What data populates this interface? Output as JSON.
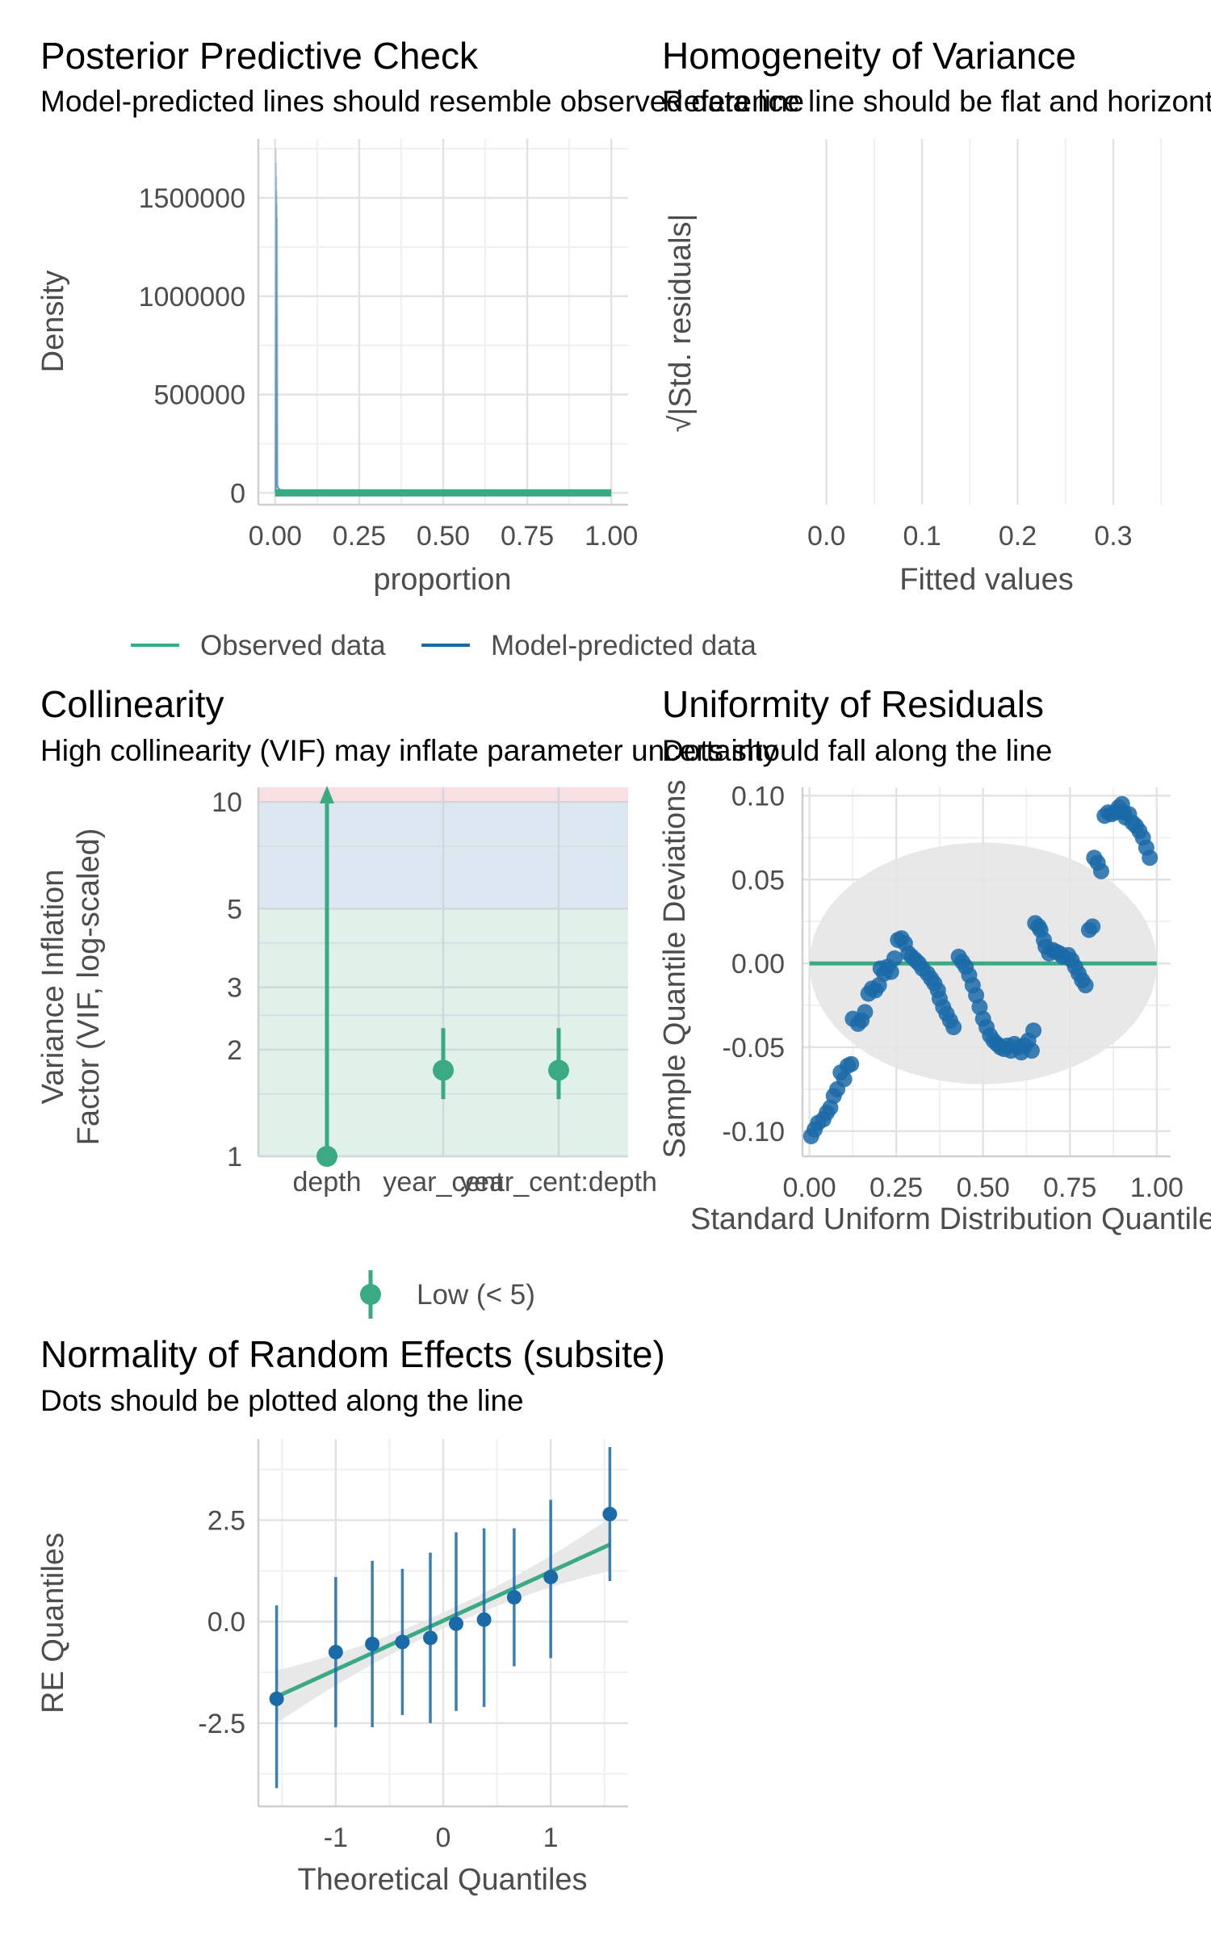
{
  "colors": {
    "observed": "#3aaa84",
    "predicted": "#1b6aa8",
    "grid_major": "#e2e2e2",
    "grid_minor": "#f0f0f0",
    "axis": "#cfcfcf",
    "vif_low": "#e0f1ea",
    "vif_moderate": "#dde7f1",
    "vif_high": "#f8dfe1",
    "band": "#e6e6e6"
  },
  "chart_data": [
    {
      "type": "line",
      "title": "Posterior Predictive Check",
      "subtitle": "Model-predicted lines should resemble observed data line",
      "xlabel": "proportion",
      "ylabel": "Density",
      "xlim": [
        0,
        1
      ],
      "ylim": [
        0,
        1750000
      ],
      "x_ticks": [
        "0.00",
        "0.25",
        "0.50",
        "0.75",
        "1.00"
      ],
      "y_ticks": [
        "0",
        "500000",
        "1000000",
        "1500000"
      ],
      "series": [
        {
          "name": "Observed data",
          "x": [
            0.0,
            0.25,
            0.5,
            0.75,
            1.0
          ],
          "y": [
            0,
            0,
            0,
            0,
            0
          ]
        },
        {
          "name": "Model-predicted data",
          "x": [
            0.0,
            0.002,
            0.004,
            0.01,
            0.03,
            0.08
          ],
          "y": [
            0,
            1750000,
            40000,
            20000,
            8000,
            2000
          ]
        }
      ],
      "legend": {
        "position": "bottom",
        "items": [
          "Observed data",
          "Model-predicted data"
        ]
      }
    },
    {
      "type": "scatter",
      "title": "Homogeneity of Variance",
      "subtitle": "Reference line should be flat and horizontal",
      "xlabel": "Fitted values",
      "ylabel": "√|Std. residuals|",
      "xlim": [
        -0.02,
        0.36
      ],
      "x_ticks": [
        "0.0",
        "0.1",
        "0.2",
        "0.3"
      ],
      "points": []
    },
    {
      "type": "scatter",
      "title": "Collinearity",
      "subtitle": "High collinearity (VIF) may inflate parameter uncertainty",
      "xlabel": "",
      "ylabel": "Variance Inflation Factor (VIF, log-scaled)",
      "ylim": [
        1,
        11
      ],
      "log_y": true,
      "y_ticks": [
        "1",
        "2",
        "3",
        "5",
        "10"
      ],
      "categories": [
        "depth",
        "year_cent",
        "year_cent:depth"
      ],
      "values": [
        1.0,
        1.75,
        1.75
      ],
      "ci_low": [
        1.0,
        1.45,
        1.45
      ],
      "ci_high": [
        11.0,
        2.3,
        2.3
      ],
      "zones": [
        {
          "from": 1,
          "to": 5
        },
        {
          "from": 5,
          "to": 10
        },
        {
          "from": 10,
          "to": 11
        }
      ],
      "legend": {
        "position": "bottom",
        "items": [
          "Low (< 5)"
        ]
      }
    },
    {
      "type": "scatter",
      "title": "Uniformity of Residuals",
      "subtitle": "Dots should fall along the line",
      "xlabel": "Standard Uniform Distribution Quantiles",
      "ylabel": "Sample Quantile Deviations",
      "xlim": [
        -0.02,
        1.04
      ],
      "ylim": [
        -0.115,
        0.105
      ],
      "x_ticks": [
        "0.00",
        "0.25",
        "0.50",
        "0.75",
        "1.00"
      ],
      "y_ticks": [
        "-0.10",
        "-0.05",
        "0.00",
        "0.05",
        "0.10"
      ],
      "points": [
        [
          0.005,
          -0.103
        ],
        [
          0.015,
          -0.099
        ],
        [
          0.025,
          -0.095
        ],
        [
          0.04,
          -0.093
        ],
        [
          0.05,
          -0.089
        ],
        [
          0.06,
          -0.086
        ],
        [
          0.07,
          -0.079
        ],
        [
          0.08,
          -0.075
        ],
        [
          0.09,
          -0.065
        ],
        [
          0.1,
          -0.069
        ],
        [
          0.11,
          -0.061
        ],
        [
          0.12,
          -0.06
        ],
        [
          0.125,
          -0.033
        ],
        [
          0.14,
          -0.036
        ],
        [
          0.15,
          -0.034
        ],
        [
          0.16,
          -0.029
        ],
        [
          0.17,
          -0.018
        ],
        [
          0.18,
          -0.015
        ],
        [
          0.19,
          -0.016
        ],
        [
          0.2,
          -0.013
        ],
        [
          0.205,
          -0.003
        ],
        [
          0.215,
          -0.006
        ],
        [
          0.225,
          -0.002
        ],
        [
          0.235,
          -0.005
        ],
        [
          0.245,
          0.003
        ],
        [
          0.255,
          0.014
        ],
        [
          0.265,
          0.015
        ],
        [
          0.275,
          0.012
        ],
        [
          0.285,
          0.006
        ],
        [
          0.295,
          0.004
        ],
        [
          0.305,
          0.002
        ],
        [
          0.315,
          0.0
        ],
        [
          0.325,
          -0.003
        ],
        [
          0.34,
          -0.006
        ],
        [
          0.35,
          -0.009
        ],
        [
          0.36,
          -0.012
        ],
        [
          0.37,
          -0.016
        ],
        [
          0.375,
          -0.021
        ],
        [
          0.385,
          -0.026
        ],
        [
          0.395,
          -0.03
        ],
        [
          0.405,
          -0.034
        ],
        [
          0.415,
          -0.038
        ],
        [
          0.43,
          0.004
        ],
        [
          0.44,
          0.001
        ],
        [
          0.45,
          -0.002
        ],
        [
          0.46,
          -0.007
        ],
        [
          0.47,
          -0.013
        ],
        [
          0.48,
          -0.019
        ],
        [
          0.49,
          -0.026
        ],
        [
          0.5,
          -0.033
        ],
        [
          0.51,
          -0.038
        ],
        [
          0.52,
          -0.043
        ],
        [
          0.53,
          -0.046
        ],
        [
          0.54,
          -0.048
        ],
        [
          0.55,
          -0.05
        ],
        [
          0.56,
          -0.051
        ],
        [
          0.57,
          -0.049
        ],
        [
          0.58,
          -0.052
        ],
        [
          0.59,
          -0.048
        ],
        [
          0.6,
          -0.05
        ],
        [
          0.61,
          -0.053
        ],
        [
          0.62,
          -0.049
        ],
        [
          0.63,
          -0.046
        ],
        [
          0.64,
          -0.052
        ],
        [
          0.645,
          -0.04
        ],
        [
          0.65,
          0.024
        ],
        [
          0.66,
          0.022
        ],
        [
          0.665,
          0.02
        ],
        [
          0.675,
          0.014
        ],
        [
          0.68,
          0.01
        ],
        [
          0.69,
          0.006
        ],
        [
          0.7,
          0.008
        ],
        [
          0.71,
          0.007
        ],
        [
          0.72,
          0.006
        ],
        [
          0.73,
          0.004
        ],
        [
          0.745,
          0.005
        ],
        [
          0.755,
          0.002
        ],
        [
          0.765,
          -0.002
        ],
        [
          0.775,
          -0.006
        ],
        [
          0.785,
          -0.01
        ],
        [
          0.795,
          -0.013
        ],
        [
          0.805,
          0.02
        ],
        [
          0.815,
          0.022
        ],
        [
          0.82,
          0.063
        ],
        [
          0.83,
          0.06
        ],
        [
          0.84,
          0.055
        ],
        [
          0.85,
          0.088
        ],
        [
          0.86,
          0.09
        ],
        [
          0.87,
          0.089
        ],
        [
          0.88,
          0.09
        ],
        [
          0.89,
          0.093
        ],
        [
          0.9,
          0.095
        ],
        [
          0.905,
          0.09
        ],
        [
          0.91,
          0.087
        ],
        [
          0.92,
          0.089
        ],
        [
          0.93,
          0.084
        ],
        [
          0.94,
          0.082
        ],
        [
          0.95,
          0.079
        ],
        [
          0.96,
          0.075
        ],
        [
          0.97,
          0.069
        ],
        [
          0.98,
          0.063
        ]
      ],
      "reference_line": {
        "x": [
          0,
          1
        ],
        "y": [
          0,
          0
        ]
      },
      "band": {
        "center": [
          0.5,
          0.0
        ],
        "radius_x": 0.5,
        "radius_y": 0.072
      }
    },
    {
      "type": "scatter",
      "title": "Normality of Random Effects (subsite)",
      "subtitle": "Dots should be plotted along the line",
      "xlabel": "Theoretical Quantiles",
      "ylabel": "RE Quantiles",
      "xlim": [
        -1.72,
        1.72
      ],
      "ylim": [
        -4.55,
        4.5
      ],
      "x_ticks": [
        "-1",
        "0",
        "1"
      ],
      "y_ticks": [
        "-2.5",
        "0.0",
        "2.5"
      ],
      "points": [
        {
          "x": -1.55,
          "y": -1.9,
          "lo": -4.1,
          "hi": 0.4
        },
        {
          "x": -1.0,
          "y": -0.75,
          "lo": -2.6,
          "hi": 1.1
        },
        {
          "x": -0.66,
          "y": -0.55,
          "lo": -2.6,
          "hi": 1.5
        },
        {
          "x": -0.38,
          "y": -0.5,
          "lo": -2.3,
          "hi": 1.3
        },
        {
          "x": -0.12,
          "y": -0.4,
          "lo": -2.5,
          "hi": 1.7
        },
        {
          "x": 0.12,
          "y": -0.05,
          "lo": -2.2,
          "hi": 2.2
        },
        {
          "x": 0.38,
          "y": 0.05,
          "lo": -2.1,
          "hi": 2.3
        },
        {
          "x": 0.66,
          "y": 0.6,
          "lo": -1.1,
          "hi": 2.3
        },
        {
          "x": 1.0,
          "y": 1.1,
          "lo": -0.9,
          "hi": 3.0
        },
        {
          "x": 1.55,
          "y": 2.65,
          "lo": 1.0,
          "hi": 4.3
        }
      ],
      "reference_line": {
        "x": [
          -1.55,
          1.55
        ],
        "y": [
          -1.85,
          1.9
        ]
      }
    }
  ]
}
